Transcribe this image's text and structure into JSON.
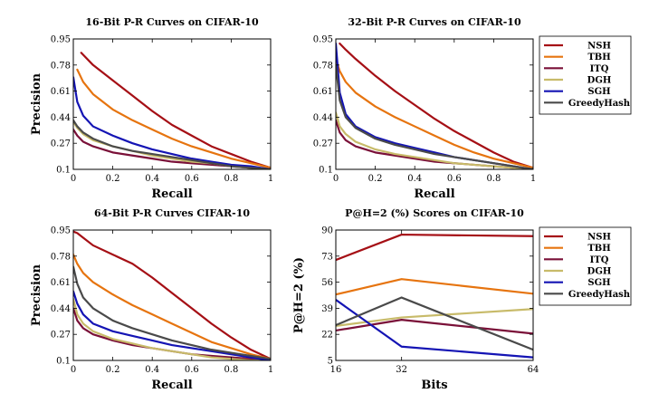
{
  "colors": {
    "NSH": "#a50f15",
    "TBH": "#e6740f",
    "ITQ": "#7a1038",
    "DGH": "#c8bb6a",
    "SGH": "#1414b4",
    "GreedyHash": "#4a4a4a"
  },
  "chart_data": [
    {
      "type": "line",
      "title": "16-Bit P-R Curves on CIFAR-10",
      "xlabel": "Recall",
      "ylabel": "Precision",
      "xlim": [
        0,
        1
      ],
      "ylim": [
        0.1,
        0.95
      ],
      "xticks": [
        "0",
        "0.2",
        "0.4",
        "0.6",
        "0.8",
        "1"
      ],
      "yticks": [
        "0.1",
        "0.27",
        "0.44",
        "0.61",
        "0.78",
        "0.95"
      ],
      "legend": "none",
      "series": [
        {
          "name": "NSH",
          "x": [
            0.04,
            0.1,
            0.2,
            0.3,
            0.4,
            0.5,
            0.6,
            0.7,
            0.8,
            0.9,
            1.0
          ],
          "y": [
            0.86,
            0.78,
            0.68,
            0.58,
            0.48,
            0.39,
            0.32,
            0.25,
            0.2,
            0.15,
            0.11
          ]
        },
        {
          "name": "TBH",
          "x": [
            0.02,
            0.05,
            0.1,
            0.2,
            0.3,
            0.4,
            0.5,
            0.6,
            0.7,
            0.8,
            0.9,
            1.0
          ],
          "y": [
            0.75,
            0.67,
            0.59,
            0.49,
            0.42,
            0.36,
            0.3,
            0.25,
            0.21,
            0.17,
            0.14,
            0.11
          ]
        },
        {
          "name": "ITQ",
          "x": [
            0.0,
            0.02,
            0.05,
            0.1,
            0.2,
            0.3,
            0.4,
            0.5,
            0.6,
            0.7,
            0.8,
            0.9,
            1.0
          ],
          "y": [
            0.36,
            0.32,
            0.28,
            0.25,
            0.21,
            0.19,
            0.17,
            0.15,
            0.14,
            0.13,
            0.12,
            0.11,
            0.1
          ]
        },
        {
          "name": "DGH",
          "x": [
            0.0,
            0.02,
            0.05,
            0.1,
            0.2,
            0.3,
            0.4,
            0.5,
            0.6,
            0.7,
            0.8,
            0.9,
            1.0
          ],
          "y": [
            0.41,
            0.37,
            0.33,
            0.29,
            0.25,
            0.22,
            0.19,
            0.17,
            0.15,
            0.14,
            0.12,
            0.11,
            0.1
          ]
        },
        {
          "name": "SGH",
          "x": [
            0.0,
            0.02,
            0.05,
            0.1,
            0.2,
            0.3,
            0.4,
            0.5,
            0.6,
            0.7,
            0.8,
            0.9,
            1.0
          ],
          "y": [
            0.7,
            0.54,
            0.45,
            0.38,
            0.32,
            0.27,
            0.23,
            0.2,
            0.17,
            0.15,
            0.13,
            0.12,
            0.1
          ]
        },
        {
          "name": "GreedyHash",
          "x": [
            0.0,
            0.02,
            0.05,
            0.1,
            0.2,
            0.3,
            0.4,
            0.5,
            0.6,
            0.7,
            0.8,
            0.9,
            1.0
          ],
          "y": [
            0.42,
            0.38,
            0.34,
            0.3,
            0.25,
            0.22,
            0.2,
            0.18,
            0.16,
            0.14,
            0.12,
            0.11,
            0.1
          ]
        }
      ]
    },
    {
      "type": "line",
      "title": "32-Bit P-R Curves on CIFAR-10",
      "xlabel": "Recall",
      "ylabel": "",
      "xlim": [
        0,
        1
      ],
      "ylim": [
        0.1,
        0.95
      ],
      "xticks": [
        "0",
        "0.2",
        "0.4",
        "0.6",
        "0.8",
        "1"
      ],
      "yticks": [
        "0.1",
        "0.27",
        "0.44",
        "0.61",
        "0.78",
        "0.95"
      ],
      "legend": "right",
      "series": [
        {
          "name": "NSH",
          "x": [
            0.02,
            0.05,
            0.1,
            0.2,
            0.3,
            0.4,
            0.5,
            0.6,
            0.7,
            0.8,
            0.9,
            1.0
          ],
          "y": [
            0.92,
            0.88,
            0.82,
            0.71,
            0.61,
            0.52,
            0.43,
            0.35,
            0.28,
            0.21,
            0.15,
            0.11
          ]
        },
        {
          "name": "TBH",
          "x": [
            0.0,
            0.02,
            0.05,
            0.1,
            0.2,
            0.3,
            0.4,
            0.5,
            0.6,
            0.7,
            0.8,
            0.9,
            1.0
          ],
          "y": [
            0.82,
            0.74,
            0.67,
            0.6,
            0.51,
            0.44,
            0.38,
            0.32,
            0.26,
            0.21,
            0.17,
            0.14,
            0.11
          ]
        },
        {
          "name": "ITQ",
          "x": [
            0.0,
            0.02,
            0.05,
            0.1,
            0.2,
            0.3,
            0.4,
            0.5,
            0.6,
            0.7,
            0.8,
            0.9,
            1.0
          ],
          "y": [
            0.42,
            0.34,
            0.29,
            0.25,
            0.21,
            0.19,
            0.17,
            0.15,
            0.14,
            0.13,
            0.12,
            0.11,
            0.1
          ]
        },
        {
          "name": "DGH",
          "x": [
            0.0,
            0.02,
            0.05,
            0.1,
            0.2,
            0.3,
            0.4,
            0.5,
            0.6,
            0.7,
            0.8,
            0.9,
            1.0
          ],
          "y": [
            0.47,
            0.38,
            0.33,
            0.28,
            0.23,
            0.2,
            0.18,
            0.16,
            0.14,
            0.13,
            0.12,
            0.11,
            0.1
          ]
        },
        {
          "name": "SGH",
          "x": [
            0.0,
            0.02,
            0.05,
            0.1,
            0.2,
            0.3,
            0.4,
            0.5,
            0.6,
            0.7,
            0.8,
            0.9,
            1.0
          ],
          "y": [
            0.92,
            0.6,
            0.46,
            0.38,
            0.31,
            0.27,
            0.24,
            0.21,
            0.18,
            0.16,
            0.14,
            0.12,
            0.1
          ]
        },
        {
          "name": "GreedyHash",
          "x": [
            0.0,
            0.02,
            0.05,
            0.1,
            0.2,
            0.3,
            0.4,
            0.5,
            0.6,
            0.7,
            0.8,
            0.9,
            1.0
          ],
          "y": [
            0.78,
            0.55,
            0.44,
            0.37,
            0.3,
            0.26,
            0.23,
            0.2,
            0.18,
            0.16,
            0.14,
            0.12,
            0.1
          ]
        }
      ]
    },
    {
      "type": "line",
      "title": "64-Bit P-R Curves CIFAR-10",
      "xlabel": "Recall",
      "ylabel": "Precision",
      "xlim": [
        0,
        1
      ],
      "ylim": [
        0.1,
        0.95
      ],
      "xticks": [
        "0",
        "0.2",
        "0.4",
        "0.6",
        "0.8",
        "1"
      ],
      "yticks": [
        "0.1",
        "0.27",
        "0.44",
        "0.61",
        "0.78",
        "0.95"
      ],
      "legend": "none",
      "series": [
        {
          "name": "NSH",
          "x": [
            0.0,
            0.02,
            0.05,
            0.1,
            0.2,
            0.3,
            0.4,
            0.5,
            0.6,
            0.7,
            0.8,
            0.9,
            1.0
          ],
          "y": [
            0.94,
            0.93,
            0.9,
            0.85,
            0.79,
            0.73,
            0.64,
            0.54,
            0.44,
            0.34,
            0.25,
            0.17,
            0.11
          ]
        },
        {
          "name": "TBH",
          "x": [
            0.0,
            0.02,
            0.05,
            0.1,
            0.2,
            0.3,
            0.4,
            0.5,
            0.6,
            0.7,
            0.8,
            0.9,
            1.0
          ],
          "y": [
            0.79,
            0.73,
            0.67,
            0.61,
            0.53,
            0.46,
            0.4,
            0.34,
            0.28,
            0.22,
            0.18,
            0.14,
            0.11
          ]
        },
        {
          "name": "ITQ",
          "x": [
            0.0,
            0.02,
            0.05,
            0.1,
            0.2,
            0.3,
            0.4,
            0.5,
            0.6,
            0.7,
            0.8,
            0.9,
            1.0
          ],
          "y": [
            0.44,
            0.36,
            0.31,
            0.27,
            0.23,
            0.2,
            0.18,
            0.16,
            0.14,
            0.13,
            0.12,
            0.11,
            0.1
          ]
        },
        {
          "name": "DGH",
          "x": [
            0.0,
            0.02,
            0.05,
            0.1,
            0.2,
            0.3,
            0.4,
            0.5,
            0.6,
            0.7,
            0.8,
            0.9,
            1.0
          ],
          "y": [
            0.5,
            0.4,
            0.34,
            0.29,
            0.24,
            0.21,
            0.18,
            0.16,
            0.14,
            0.12,
            0.11,
            0.1,
            0.1
          ]
        },
        {
          "name": "SGH",
          "x": [
            0.0,
            0.02,
            0.05,
            0.1,
            0.2,
            0.3,
            0.4,
            0.5,
            0.6,
            0.7,
            0.8,
            0.9,
            1.0
          ],
          "y": [
            0.55,
            0.47,
            0.4,
            0.34,
            0.29,
            0.26,
            0.23,
            0.2,
            0.18,
            0.16,
            0.14,
            0.12,
            0.1
          ]
        },
        {
          "name": "GreedyHash",
          "x": [
            0.0,
            0.02,
            0.05,
            0.1,
            0.2,
            0.3,
            0.4,
            0.5,
            0.6,
            0.7,
            0.8,
            0.9,
            1.0
          ],
          "y": [
            0.71,
            0.6,
            0.51,
            0.44,
            0.36,
            0.31,
            0.27,
            0.23,
            0.2,
            0.17,
            0.15,
            0.13,
            0.11
          ]
        }
      ]
    },
    {
      "type": "line",
      "title": "P@H=2 (%) Scores on CIFAR-10",
      "xlabel": "Bits",
      "ylabel": "P@H=2 (%)",
      "xlim": [
        16,
        64
      ],
      "ylim": [
        5,
        90
      ],
      "xticks": [
        "16",
        "32",
        "64"
      ],
      "yticks": [
        "5",
        "22",
        "39",
        "56",
        "73",
        "90"
      ],
      "legend": "right",
      "series": [
        {
          "name": "NSH",
          "x": [
            16,
            32,
            64
          ],
          "y": [
            70.5,
            87.0,
            86.0
          ]
        },
        {
          "name": "TBH",
          "x": [
            16,
            32,
            64
          ],
          "y": [
            48.0,
            58.0,
            48.5
          ]
        },
        {
          "name": "ITQ",
          "x": [
            16,
            32,
            64
          ],
          "y": [
            24.5,
            31.5,
            22.5
          ]
        },
        {
          "name": "DGH",
          "x": [
            16,
            32,
            64
          ],
          "y": [
            27.5,
            33.0,
            38.5
          ]
        },
        {
          "name": "SGH",
          "x": [
            16,
            32,
            64
          ],
          "y": [
            44.5,
            14.0,
            7.0
          ]
        },
        {
          "name": "GreedyHash",
          "x": [
            16,
            32,
            64
          ],
          "y": [
            28.0,
            46.0,
            12.0
          ]
        }
      ]
    }
  ]
}
